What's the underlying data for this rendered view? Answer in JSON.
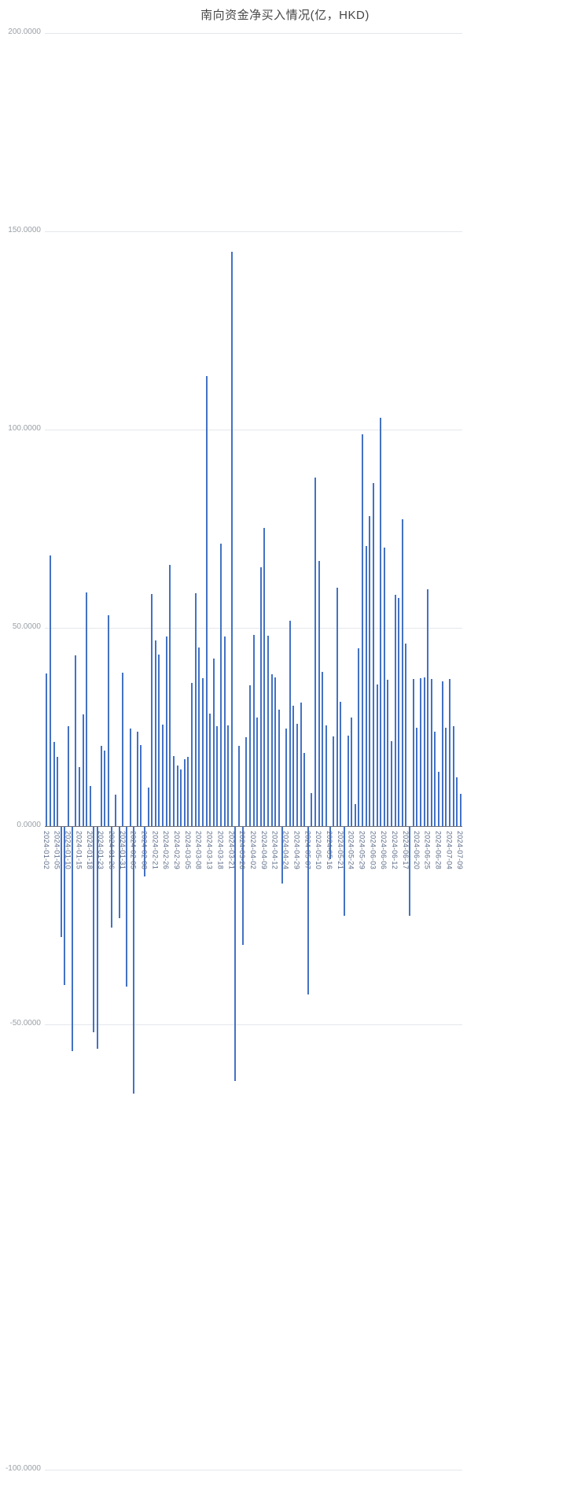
{
  "title": "南向资金净买入情况(亿，HKD)",
  "colors": {
    "bar": "#4472c4",
    "axis_line": "#6E7079",
    "grid_line": "#e4e7ed",
    "y_label": "#9aa0a6",
    "x_label": "#5b6b86",
    "title": "#464646",
    "background": "#ffffff"
  },
  "chart_data": {
    "type": "bar",
    "title": "南向资金净买入情况(亿，HKD)",
    "xlabel": "",
    "ylabel": "",
    "ylim": [
      -100,
      200
    ],
    "grid": "horizontal-only",
    "legend": "none",
    "y_ticks": [
      {
        "value": 200,
        "label": "200.0000"
      },
      {
        "value": 150,
        "label": "150.0000"
      },
      {
        "value": 100,
        "label": "100.0000"
      },
      {
        "value": 50,
        "label": "50.0000"
      },
      {
        "value": 0,
        "label": "0.0000"
      },
      {
        "value": -50,
        "label": "-50.0000"
      },
      {
        "value": -100,
        "label": "-100.0000"
      }
    ],
    "x_label_interval": 3,
    "categories": [
      "2024-01-02",
      "2024-01-03",
      "2024-01-04",
      "2024-01-05",
      "2024-01-08",
      "2024-01-09",
      "2024-01-10",
      "2024-01-11",
      "2024-01-12",
      "2024-01-15",
      "2024-01-16",
      "2024-01-17",
      "2024-01-18",
      "2024-01-19",
      "2024-01-22",
      "2024-01-23",
      "2024-01-24",
      "2024-01-25",
      "2024-01-26",
      "2024-01-29",
      "2024-01-30",
      "2024-01-31",
      "2024-02-01",
      "2024-02-02",
      "2024-02-05",
      "2024-02-06",
      "2024-02-07",
      "2024-02-08",
      "2024-02-19",
      "2024-02-20",
      "2024-02-21",
      "2024-02-22",
      "2024-02-23",
      "2024-02-26",
      "2024-02-27",
      "2024-02-28",
      "2024-02-29",
      "2024-03-01",
      "2024-03-04",
      "2024-03-05",
      "2024-03-06",
      "2024-03-07",
      "2024-03-08",
      "2024-03-11",
      "2024-03-12",
      "2024-03-13",
      "2024-03-14",
      "2024-03-15",
      "2024-03-18",
      "2024-03-19",
      "2024-03-20",
      "2024-03-21",
      "2024-03-22",
      "2024-03-25",
      "2024-03-26",
      "2024-03-27",
      "2024-03-28",
      "2024-04-02",
      "2024-04-03",
      "2024-04-08",
      "2024-04-09",
      "2024-04-10",
      "2024-04-11",
      "2024-04-12",
      "2024-04-15",
      "2024-04-16",
      "2024-04-24",
      "2024-04-25",
      "2024-04-26",
      "2024-04-29",
      "2024-04-30",
      "2024-05-06",
      "2024-05-07",
      "2024-05-08",
      "2024-05-09",
      "2024-05-10",
      "2024-05-13",
      "2024-05-14",
      "2024-05-16",
      "2024-05-17",
      "2024-05-20",
      "2024-05-21",
      "2024-05-22",
      "2024-05-23",
      "2024-05-24",
      "2024-05-27",
      "2024-05-28",
      "2024-05-29",
      "2024-05-30",
      "2024-05-31",
      "2024-06-03",
      "2024-06-04",
      "2024-06-05",
      "2024-06-06",
      "2024-06-07",
      "2024-06-11",
      "2024-06-12",
      "2024-06-13",
      "2024-06-14",
      "2024-06-17",
      "2024-06-18",
      "2024-06-19",
      "2024-06-20",
      "2024-06-21",
      "2024-06-24",
      "2024-06-25",
      "2024-06-26",
      "2024-06-27",
      "2024-06-28",
      "2024-07-02",
      "2024-07-03",
      "2024-07-04",
      "2024-07-05",
      "2024-07-08",
      "2024-07-09"
    ],
    "values": [
      38.5,
      68.2,
      21.2,
      17.5,
      -27.8,
      -39.9,
      25.1,
      -56.5,
      43.1,
      14.9,
      28.2,
      58.9,
      10.1,
      -51.8,
      -56.0,
      20.3,
      19.1,
      53.2,
      -25.4,
      7.9,
      -23.1,
      38.6,
      -40.2,
      24.6,
      -67.3,
      23.8,
      20.4,
      -12.5,
      9.8,
      58.5,
      46.8,
      43.2,
      25.6,
      47.9,
      65.8,
      17.6,
      15.3,
      14.2,
      16.8,
      17.4,
      36.2,
      58.8,
      45.1,
      37.3,
      113.5,
      28.4,
      42.3,
      25.2,
      71.2,
      47.8,
      25.4,
      144.8,
      -64.1,
      20.2,
      -29.8,
      22.4,
      35.6,
      48.2,
      27.4,
      65.3,
      75.1,
      48.0,
      38.2,
      37.5,
      29.3,
      -14.2,
      24.6,
      51.8,
      30.4,
      25.7,
      31.2,
      18.4,
      -42.3,
      8.4,
      87.9,
      66.8,
      38.9,
      25.4,
      -8.2,
      22.6,
      60.2,
      31.4,
      -22.4,
      22.8,
      27.3,
      5.6,
      44.8,
      98.9,
      70.6,
      78.2,
      86.6,
      35.8,
      102.9,
      70.2,
      36.9,
      21.4,
      58.3,
      57.6,
      77.3,
      46.1,
      -22.4,
      37.2,
      24.9,
      37.4,
      37.5,
      59.8,
      37.2,
      23.8,
      13.6,
      36.5,
      24.8,
      37.1,
      25.2,
      12.4,
      8.2
    ]
  }
}
